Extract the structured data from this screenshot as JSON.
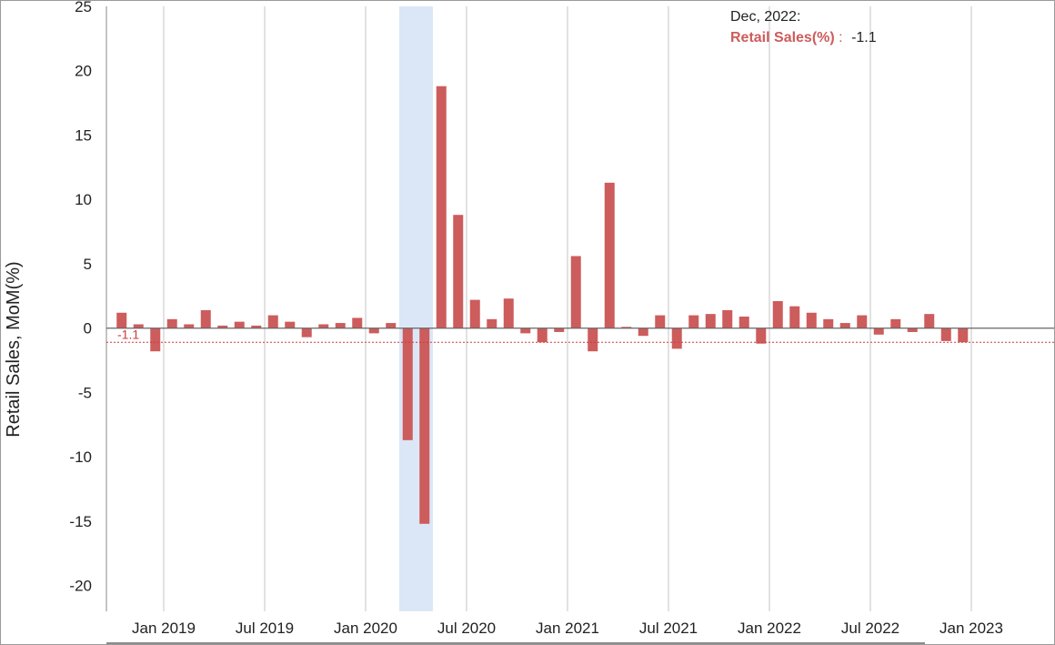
{
  "colors": {
    "bar": "#cd5c5c",
    "recession": "#dbe7f6",
    "grid": "#c4c4c4",
    "zero": "#666666",
    "current": "#cd3b3b"
  },
  "tooltip": {
    "date": "Dec, 2022:",
    "series": "Retail Sales(%)",
    "sep": ":",
    "value": "-1.1"
  },
  "current_marker": {
    "label": "-1.1",
    "value": -1.1
  },
  "chart_data": {
    "type": "bar",
    "ylabel": "Retail Sales, MoM(%)",
    "ylim": [
      -22,
      25
    ],
    "y_ticks": [
      25,
      20,
      15,
      10,
      5,
      0,
      -5,
      -10,
      -15,
      -20
    ],
    "x_ticks": [
      "Jan 2019",
      "Jul 2019",
      "Jan 2020",
      "Jul 2020",
      "Jan 2021",
      "Jul 2021",
      "Jan 2022",
      "Jul 2022",
      "Jan 2023"
    ],
    "grid": true,
    "shaded_periods": [
      {
        "from": "2020-03",
        "to": "2020-04"
      }
    ],
    "categories": [
      "2018-10",
      "2018-11",
      "2018-12",
      "2019-01",
      "2019-02",
      "2019-03",
      "2019-04",
      "2019-05",
      "2019-06",
      "2019-07",
      "2019-08",
      "2019-09",
      "2019-10",
      "2019-11",
      "2019-12",
      "2020-01",
      "2020-02",
      "2020-03",
      "2020-04",
      "2020-05",
      "2020-06",
      "2020-07",
      "2020-08",
      "2020-09",
      "2020-10",
      "2020-11",
      "2020-12",
      "2021-01",
      "2021-02",
      "2021-03",
      "2021-04",
      "2021-05",
      "2021-06",
      "2021-07",
      "2021-08",
      "2021-09",
      "2021-10",
      "2021-11",
      "2021-12",
      "2022-01",
      "2022-02",
      "2022-03",
      "2022-04",
      "2022-05",
      "2022-06",
      "2022-07",
      "2022-08",
      "2022-09",
      "2022-10",
      "2022-11",
      "2022-12"
    ],
    "series": [
      {
        "values": [
          1.2,
          0.3,
          -1.8,
          0.7,
          0.3,
          1.4,
          0.2,
          0.5,
          0.2,
          1.0,
          0.5,
          -0.7,
          0.3,
          0.4,
          0.8,
          -0.4,
          0.4,
          -8.7,
          -15.2,
          18.8,
          8.8,
          2.2,
          0.7,
          2.3,
          -0.4,
          -1.1,
          -0.3,
          5.6,
          -1.8,
          11.3,
          0.1,
          -0.6,
          1.0,
          -1.6,
          1.0,
          1.1,
          1.4,
          0.9,
          -1.2,
          2.1,
          1.7,
          1.2,
          0.7,
          0.4,
          1.0,
          -0.5,
          0.7,
          -0.3,
          1.1,
          -1.0,
          -1.1
        ]
      }
    ]
  }
}
